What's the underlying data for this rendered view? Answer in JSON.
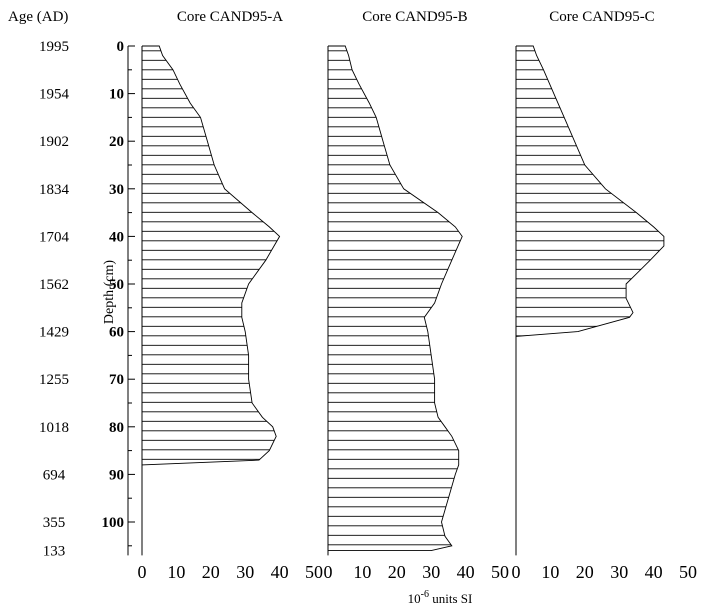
{
  "age_axis": {
    "label": "Age (AD)",
    "ages": [
      {
        "label": "1995",
        "depth": 0
      },
      {
        "label": "1954",
        "depth": 10
      },
      {
        "label": "1902",
        "depth": 20
      },
      {
        "label": "1834",
        "depth": 30
      },
      {
        "label": "1704",
        "depth": 40
      },
      {
        "label": "1562",
        "depth": 50
      },
      {
        "label": "1429",
        "depth": 60
      },
      {
        "label": "1255",
        "depth": 70
      },
      {
        "label": "1018",
        "depth": 80
      },
      {
        "label": "694",
        "depth": 90
      },
      {
        "label": "355",
        "depth": 100
      },
      {
        "label": "133",
        "depth": 106
      }
    ]
  },
  "depth_axis": {
    "label": "Depth (cm)",
    "range": [
      0,
      107
    ],
    "major_ticks": [
      0,
      10,
      20,
      30,
      40,
      50,
      60,
      70,
      80,
      90,
      100
    ],
    "minor_step": 5
  },
  "x_axis": {
    "label_base": "10",
    "label_exp": "-6",
    "label_rest": " units SI",
    "range": [
      0,
      50
    ],
    "ticks": [
      "0",
      "10",
      "20",
      "30",
      "40",
      "50"
    ]
  },
  "chart_data": {
    "type": "area",
    "orientation": "depth-profile",
    "hatch": "horizontal",
    "shared_axes": {
      "x_range": [
        0,
        50
      ],
      "depth_range": [
        0,
        107
      ]
    },
    "series": [
      {
        "name": "Core CAND95-A",
        "depth": [
          0,
          2,
          5,
          8,
          12,
          15,
          20,
          25,
          30,
          35,
          38,
          40,
          45,
          50,
          54,
          57,
          60,
          65,
          70,
          75,
          78,
          80,
          82,
          85,
          87,
          88,
          89,
          95,
          100,
          106
        ],
        "value": [
          5,
          6,
          9,
          11,
          14,
          17,
          19,
          21,
          24,
          32,
          37,
          40,
          36,
          31,
          29,
          29,
          30,
          31,
          31,
          32,
          35,
          38,
          39,
          37,
          34,
          0,
          0,
          0,
          0,
          0
        ]
      },
      {
        "name": "Core CAND95-B",
        "depth": [
          0,
          2,
          5,
          8,
          12,
          15,
          20,
          25,
          30,
          35,
          38,
          40,
          45,
          50,
          54,
          57,
          60,
          65,
          70,
          75,
          78,
          80,
          82,
          85,
          88,
          90,
          95,
          100,
          103,
          105,
          106
        ],
        "value": [
          5,
          6,
          7,
          9,
          12,
          14,
          16,
          18,
          22,
          32,
          37,
          39,
          36,
          33,
          31,
          28,
          29,
          30,
          31,
          31,
          32,
          34,
          36,
          38,
          38,
          37,
          35,
          33,
          34,
          36,
          30
        ]
      },
      {
        "name": "Core CAND95-C",
        "depth": [
          0,
          2,
          5,
          10,
          15,
          20,
          25,
          30,
          35,
          38,
          40,
          42,
          45,
          50,
          53,
          56,
          57,
          60,
          61,
          65,
          106
        ],
        "value": [
          5,
          6,
          8,
          11,
          14,
          17,
          20,
          26,
          35,
          40,
          43,
          43,
          39,
          32,
          32,
          34,
          33,
          18,
          0,
          0,
          0
        ]
      }
    ]
  }
}
